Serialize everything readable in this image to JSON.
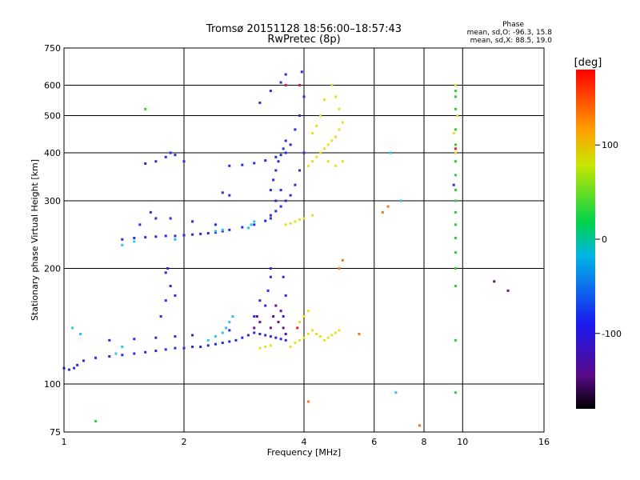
{
  "chart_data": {
    "type": "scatter",
    "title": "Tromsø 20151128 18:56:00–18:57:43",
    "subtitle": "RwPretec (8p)",
    "xlabel": "Frequency [MHz]",
    "ylabel": "Stationary phase Virtual Height [km]",
    "x_scale": "log",
    "y_scale": "log",
    "xlim": [
      1,
      16
    ],
    "ylim": [
      75,
      750
    ],
    "x_ticks": [
      1,
      2,
      4,
      6,
      8,
      10,
      16
    ],
    "y_ticks": [
      75,
      100,
      200,
      300,
      400,
      500,
      600,
      750
    ],
    "grid": true,
    "stats": {
      "title": "Phase",
      "line_o": "mean, sd,O: -96.3, 15.8",
      "line_x": "mean, sd,X: 88.5, 19.0"
    },
    "colorbar": {
      "label": "[deg]",
      "ticks": [
        100,
        0,
        -100
      ],
      "range": [
        -180,
        180
      ]
    },
    "series": [
      {
        "color": "#2a2ae0",
        "points": [
          [
            1.0,
            110
          ],
          [
            1.03,
            109
          ],
          [
            1.06,
            110
          ],
          [
            1.08,
            112
          ],
          [
            1.12,
            115
          ],
          [
            1.2,
            117
          ],
          [
            1.3,
            118
          ],
          [
            1.4,
            119
          ],
          [
            1.5,
            120
          ],
          [
            1.6,
            121
          ],
          [
            1.7,
            122
          ],
          [
            1.8,
            123
          ],
          [
            1.9,
            124
          ],
          [
            2.0,
            124
          ],
          [
            2.1,
            125
          ],
          [
            2.2,
            125
          ],
          [
            2.3,
            126
          ],
          [
            2.4,
            127
          ],
          [
            2.5,
            128
          ],
          [
            2.6,
            129
          ],
          [
            2.7,
            130
          ],
          [
            2.8,
            132
          ],
          [
            2.9,
            134
          ],
          [
            3.0,
            136
          ],
          [
            3.1,
            135
          ],
          [
            3.2,
            134
          ],
          [
            3.3,
            133
          ],
          [
            3.4,
            132
          ],
          [
            3.5,
            131
          ],
          [
            3.6,
            130
          ],
          [
            1.3,
            130
          ],
          [
            1.5,
            131
          ],
          [
            1.7,
            132
          ],
          [
            1.9,
            133
          ],
          [
            2.1,
            134
          ],
          [
            2.6,
            138
          ],
          [
            1.75,
            150
          ],
          [
            1.8,
            165
          ],
          [
            1.85,
            180
          ],
          [
            1.8,
            195
          ],
          [
            1.82,
            200
          ],
          [
            1.9,
            170
          ],
          [
            3.2,
            160
          ],
          [
            3.25,
            175
          ],
          [
            3.3,
            190
          ],
          [
            3.3,
            200
          ],
          [
            3.55,
            150
          ],
          [
            3.6,
            170
          ],
          [
            3.55,
            190
          ],
          [
            3.0,
            150
          ],
          [
            3.1,
            165
          ],
          [
            1.4,
            238
          ],
          [
            1.5,
            240
          ],
          [
            1.6,
            241
          ],
          [
            1.7,
            242
          ],
          [
            1.8,
            243
          ],
          [
            1.9,
            243
          ],
          [
            2.0,
            244
          ],
          [
            2.1,
            245
          ],
          [
            2.2,
            246
          ],
          [
            2.3,
            247
          ],
          [
            2.4,
            248
          ],
          [
            2.5,
            250
          ],
          [
            2.6,
            252
          ],
          [
            2.8,
            256
          ],
          [
            3.0,
            260
          ],
          [
            3.2,
            266
          ],
          [
            3.3,
            270
          ],
          [
            1.55,
            260
          ],
          [
            1.65,
            280
          ],
          [
            1.7,
            270
          ],
          [
            1.85,
            270
          ],
          [
            2.1,
            265
          ],
          [
            2.4,
            260
          ],
          [
            3.3,
            275
          ],
          [
            3.4,
            282
          ],
          [
            3.5,
            290
          ],
          [
            3.6,
            300
          ],
          [
            3.7,
            310
          ],
          [
            3.8,
            330
          ],
          [
            3.9,
            360
          ],
          [
            4.0,
            400
          ],
          [
            3.3,
            320
          ],
          [
            3.35,
            340
          ],
          [
            3.4,
            360
          ],
          [
            3.45,
            380
          ],
          [
            3.5,
            395
          ],
          [
            3.55,
            410
          ],
          [
            3.6,
            430
          ],
          [
            3.4,
            300
          ],
          [
            3.5,
            320
          ],
          [
            2.6,
            370
          ],
          [
            2.8,
            372
          ],
          [
            3.0,
            376
          ],
          [
            3.2,
            382
          ],
          [
            3.4,
            390
          ],
          [
            3.6,
            400
          ],
          [
            3.7,
            420
          ],
          [
            3.8,
            460
          ],
          [
            3.9,
            500
          ],
          [
            4.0,
            560
          ],
          [
            3.9,
            600
          ],
          [
            3.95,
            650
          ],
          [
            3.6,
            640
          ],
          [
            3.5,
            610
          ],
          [
            3.1,
            540
          ],
          [
            3.3,
            580
          ],
          [
            1.7,
            380
          ],
          [
            1.8,
            390
          ],
          [
            1.85,
            400
          ],
          [
            1.9,
            395
          ],
          [
            2.0,
            380
          ],
          [
            1.6,
            375
          ],
          [
            2.5,
            315
          ],
          [
            2.6,
            310
          ],
          [
            9.5,
            330
          ],
          [
            9.6,
            400
          ]
        ]
      },
      {
        "color": "#e8e020",
        "points": [
          [
            3.7,
            125
          ],
          [
            3.8,
            128
          ],
          [
            3.9,
            130
          ],
          [
            4.0,
            132
          ],
          [
            4.1,
            135
          ],
          [
            4.2,
            138
          ],
          [
            4.3,
            135
          ],
          [
            4.4,
            133
          ],
          [
            4.5,
            130
          ],
          [
            4.6,
            132
          ],
          [
            4.7,
            134
          ],
          [
            4.8,
            136
          ],
          [
            4.9,
            138
          ],
          [
            3.9,
            145
          ],
          [
            4.0,
            150
          ],
          [
            4.1,
            155
          ],
          [
            3.1,
            124
          ],
          [
            3.2,
            125
          ],
          [
            3.3,
            126
          ],
          [
            4.1,
            370
          ],
          [
            4.2,
            380
          ],
          [
            4.3,
            390
          ],
          [
            4.4,
            400
          ],
          [
            4.5,
            410
          ],
          [
            4.6,
            420
          ],
          [
            4.7,
            430
          ],
          [
            4.8,
            440
          ],
          [
            4.9,
            460
          ],
          [
            5.0,
            480
          ],
          [
            4.9,
            520
          ],
          [
            4.8,
            560
          ],
          [
            4.7,
            600
          ],
          [
            4.5,
            550
          ],
          [
            4.4,
            500
          ],
          [
            4.3,
            470
          ],
          [
            4.2,
            450
          ],
          [
            4.6,
            380
          ],
          [
            4.8,
            370
          ],
          [
            5.0,
            380
          ],
          [
            3.6,
            260
          ],
          [
            3.7,
            262
          ],
          [
            3.8,
            265
          ],
          [
            3.9,
            268
          ],
          [
            4.0,
            270
          ],
          [
            4.2,
            275
          ],
          [
            9.6,
            600
          ],
          [
            9.6,
            560
          ],
          [
            9.7,
            500
          ],
          [
            9.5,
            450
          ],
          [
            9.6,
            400
          ]
        ]
      },
      {
        "color": "#28c8e0",
        "points": [
          [
            1.35,
            120
          ],
          [
            1.4,
            125
          ],
          [
            2.3,
            130
          ],
          [
            2.4,
            133
          ],
          [
            2.5,
            136
          ],
          [
            2.55,
            140
          ],
          [
            2.6,
            145
          ],
          [
            2.65,
            150
          ],
          [
            1.4,
            230
          ],
          [
            1.5,
            235
          ],
          [
            2.9,
            255
          ],
          [
            2.95,
            260
          ],
          [
            3.0,
            265
          ],
          [
            2.4,
            250
          ],
          [
            2.5,
            252
          ],
          [
            1.9,
            238
          ],
          [
            1.05,
            140
          ],
          [
            1.1,
            135
          ],
          [
            6.8,
            95
          ],
          [
            6.6,
            400
          ],
          [
            7.0,
            300
          ]
        ]
      },
      {
        "color": "#30d030",
        "points": [
          [
            9.6,
            180
          ],
          [
            9.6,
            200
          ],
          [
            9.6,
            220
          ],
          [
            9.6,
            240
          ],
          [
            9.6,
            260
          ],
          [
            9.6,
            280
          ],
          [
            9.6,
            300
          ],
          [
            9.6,
            320
          ],
          [
            9.6,
            350
          ],
          [
            9.6,
            380
          ],
          [
            9.6,
            420
          ],
          [
            9.6,
            460
          ],
          [
            9.6,
            520
          ],
          [
            9.6,
            560
          ],
          [
            9.6,
            580
          ],
          [
            9.6,
            130
          ],
          [
            9.6,
            95
          ],
          [
            1.2,
            80
          ],
          [
            1.6,
            520
          ]
        ]
      },
      {
        "color": "#6a1090",
        "points": [
          [
            3.0,
            140
          ],
          [
            3.05,
            150
          ],
          [
            3.1,
            145
          ],
          [
            3.3,
            140
          ],
          [
            3.35,
            150
          ],
          [
            3.4,
            160
          ],
          [
            3.45,
            145
          ],
          [
            3.5,
            155
          ],
          [
            3.55,
            140
          ],
          [
            3.6,
            135
          ],
          [
            13,
            175
          ],
          [
            12,
            185
          ]
        ]
      },
      {
        "color": "#f07818",
        "points": [
          [
            4.9,
            200
          ],
          [
            5.0,
            210
          ],
          [
            6.3,
            280
          ],
          [
            6.5,
            290
          ],
          [
            4.1,
            90
          ],
          [
            5.5,
            135
          ],
          [
            7.8,
            78
          ]
        ]
      },
      {
        "color": "#e02020",
        "points": [
          [
            3.9,
            600
          ],
          [
            3.6,
            600
          ],
          [
            3.85,
            140
          ],
          [
            9.6,
            410
          ]
        ]
      }
    ]
  }
}
